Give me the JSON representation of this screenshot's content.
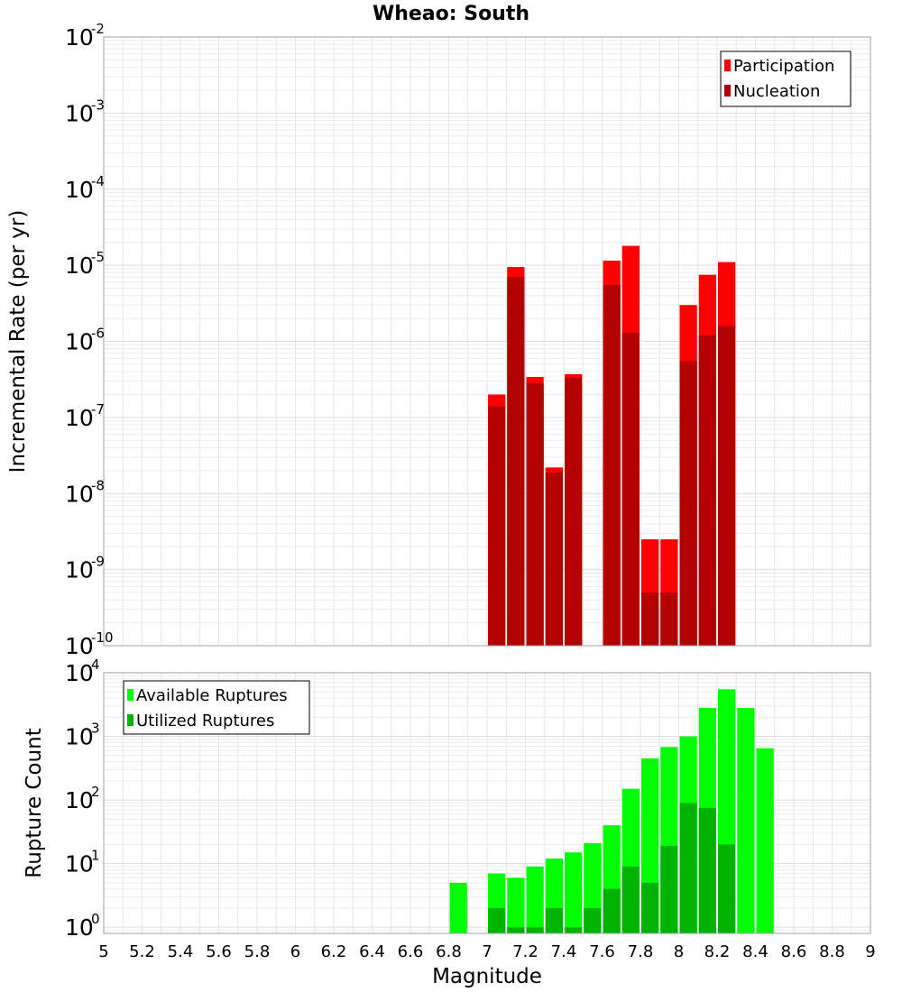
{
  "title": "Wheao: South",
  "xlabel": "Magnitude",
  "chart_data": [
    {
      "type": "bar",
      "ylabel": "Incremental Rate (per yr)",
      "yscale": "log",
      "ylim": [
        1e-10,
        0.01
      ],
      "xlim": [
        5,
        9
      ],
      "y_tick_exponents": [
        -10,
        -9,
        -8,
        -7,
        -6,
        -5,
        -4,
        -3,
        -2
      ],
      "legend_position": "top-right",
      "x": [
        7.05,
        7.15,
        7.25,
        7.35,
        7.45,
        7.55,
        7.65,
        7.75,
        7.85,
        7.95,
        8.05,
        8.15,
        8.25
      ],
      "series": [
        {
          "name": "Participation",
          "color": "#ff0000",
          "values": [
            2e-07,
            9.5e-06,
            3.4e-07,
            2.2e-08,
            3.7e-07,
            null,
            1.15e-05,
            1.8e-05,
            2.5e-09,
            2.5e-09,
            3e-06,
            7.5e-06,
            1.1e-05
          ]
        },
        {
          "name": "Nucleation",
          "color": "#b30000",
          "values": [
            1.4e-07,
            7e-06,
            2.8e-07,
            1.9e-08,
            3.3e-07,
            null,
            5.5e-06,
            1.3e-06,
            5e-10,
            5e-10,
            5.5e-07,
            1.2e-06,
            1.6e-06
          ]
        }
      ]
    },
    {
      "type": "bar",
      "ylabel": "Rupture Count",
      "yscale": "log",
      "ylim": [
        0.8,
        10000
      ],
      "xlim": [
        5,
        9
      ],
      "y_tick_exponents": [
        0,
        1,
        2,
        3,
        4
      ],
      "legend_position": "top-left",
      "x": [
        6.85,
        6.95,
        7.05,
        7.15,
        7.25,
        7.35,
        7.45,
        7.55,
        7.65,
        7.75,
        7.85,
        7.95,
        8.05,
        8.15,
        8.25,
        8.35,
        8.45
      ],
      "series": [
        {
          "name": "Available Ruptures",
          "color": "#00ff00",
          "values": [
            5,
            null,
            7,
            6,
            9,
            12,
            15,
            21,
            40,
            150,
            450,
            680,
            1000,
            2800,
            5500,
            2800,
            650
          ]
        },
        {
          "name": "Utilized Ruptures",
          "color": "#00b300",
          "values": [
            null,
            null,
            2,
            1,
            1,
            2,
            1,
            2,
            4,
            9,
            5,
            19,
            90,
            75,
            20,
            null,
            null
          ]
        }
      ]
    }
  ],
  "x_ticks": [
    "5",
    "5.2",
    "5.4",
    "5.6",
    "5.8",
    "6",
    "6.2",
    "6.4",
    "6.6",
    "6.8",
    "7",
    "7.2",
    "7.4",
    "7.6",
    "7.8",
    "8",
    "8.2",
    "8.4",
    "8.6",
    "8.8",
    "9"
  ],
  "log_base_label": "10"
}
